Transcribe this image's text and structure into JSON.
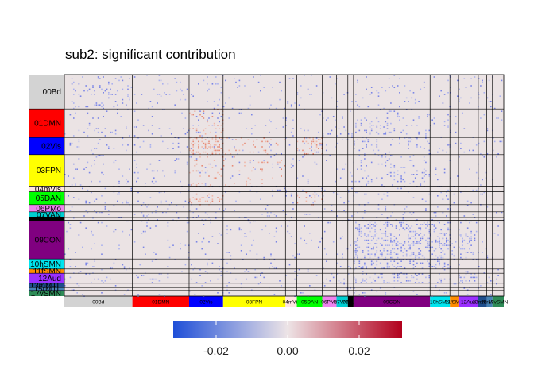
{
  "chart_data": {
    "type": "heatmap",
    "title": "sub2: significant contribution",
    "xlabel": "",
    "ylabel": "",
    "networks": [
      {
        "label": "00Bd",
        "color": "#d3d3d3",
        "size": 24
      },
      {
        "label": "01DMN",
        "color": "#ff0000",
        "size": 20
      },
      {
        "label": "02Vis",
        "color": "#0000ff",
        "size": 12
      },
      {
        "label": "03FPN",
        "color": "#ffff00",
        "size": 22
      },
      {
        "label": "04mVis",
        "color": "#ffe4e1",
        "size": 4
      },
      {
        "label": "05DAN",
        "color": "#00ff00",
        "size": 9
      },
      {
        "label": "06PMo",
        "color": "#ee82ee",
        "size": 5
      },
      {
        "label": "07VAN",
        "color": "#00ced1",
        "size": 4
      },
      {
        "label": "08SLC",
        "color": "#000000",
        "size": 2
      },
      {
        "label": "09CON",
        "color": "#800080",
        "size": 27
      },
      {
        "label": "10hSMN",
        "color": "#00e5ee",
        "size": 7
      },
      {
        "label": "11fSMN",
        "color": "#ff8c00",
        "size": 3
      },
      {
        "label": "12Aud",
        "color": "#9b30ff",
        "size": 7
      },
      {
        "label": "13mMTL",
        "color": "#1f4e8c",
        "size": 3
      },
      {
        "label": "15rMTL",
        "color": "#4682b4",
        "size": 2
      },
      {
        "label": "17vSMN",
        "color": "#2e8b57",
        "size": 4
      }
    ],
    "colorbar": {
      "min": -0.032,
      "max": 0.032,
      "ticks": [
        -0.02,
        0.0,
        0.02
      ],
      "tick_labels": [
        "-0.02",
        "0.00",
        "0.02"
      ],
      "low_color": "#1f4fd8",
      "mid_color": "#ede4e6",
      "high_color": "#b2001c"
    },
    "background_value_color": "#ebe3e4",
    "positive_blocks": [
      {
        "row": "02Vis",
        "col": "02Vis",
        "density": 0.35
      },
      {
        "row": "02Vis",
        "col": "05DAN",
        "density": 0.3
      },
      {
        "row": "01DMN",
        "col": "02Vis",
        "density": 0.12
      },
      {
        "row": "03FPN",
        "col": "02Vis",
        "density": 0.1
      },
      {
        "row": "05DAN",
        "col": "02Vis",
        "density": 0.15
      },
      {
        "row": "05DAN",
        "col": "05DAN",
        "density": 0.15
      },
      {
        "row": "03FPN",
        "col": "03FPN",
        "density": 0.06
      },
      {
        "row": "02Vis",
        "col": "03FPN",
        "density": 0.06
      }
    ],
    "negative_blocks": [
      {
        "row": "09CON",
        "col": "09CON",
        "density": 0.28
      },
      {
        "row": "09CON",
        "col": "10hSMN",
        "density": 0.25
      },
      {
        "row": "10hSMN",
        "col": "09CON",
        "density": 0.25
      },
      {
        "row": "10hSMN",
        "col": "10hSMN",
        "density": 0.3
      },
      {
        "row": "12Aud",
        "col": "09CON",
        "density": 0.2
      },
      {
        "row": "09CON",
        "col": "12Aud",
        "density": 0.2
      },
      {
        "row": "12Aud",
        "col": "12Aud",
        "density": 0.25
      },
      {
        "row": "00Bd",
        "col": "00Bd",
        "density": 0.1
      },
      {
        "row": "01DMN",
        "col": "09CON",
        "density": 0.1
      },
      {
        "row": "02Vis",
        "col": "09CON",
        "density": 0.1
      },
      {
        "row": "03FPN",
        "col": "09CON",
        "density": 0.1
      }
    ],
    "legend": "bottom",
    "grid": false
  }
}
